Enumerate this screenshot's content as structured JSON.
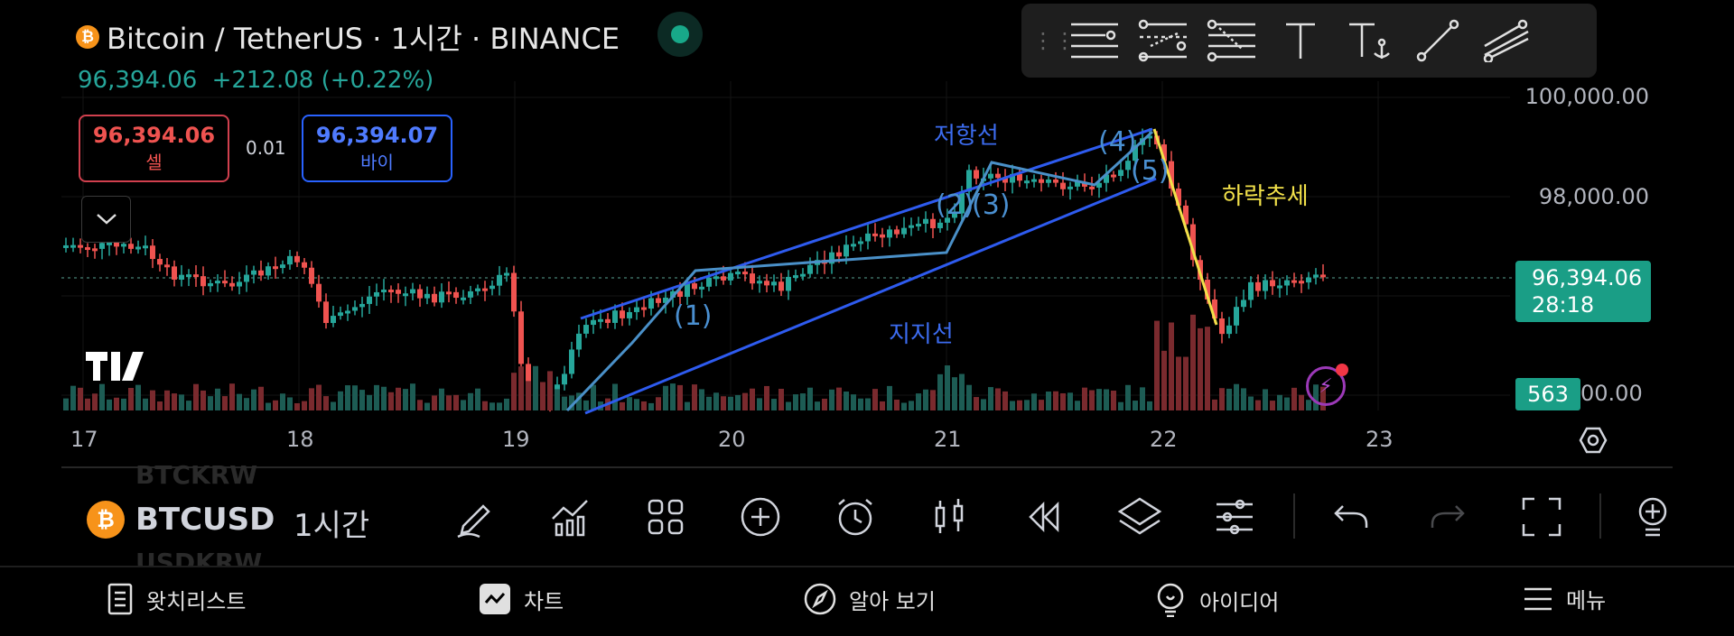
{
  "header": {
    "coin_glyph": "₿",
    "title": "Bitcoin / TetherUS · 1시간 · BINANCE",
    "last_price": "96,394.06",
    "change": "+212.08 (+0.22%)"
  },
  "order": {
    "sell_price": "96,394.06",
    "sell_label": "셀",
    "spread": "0.01",
    "buy_price": "96,394.07",
    "buy_label": "바이"
  },
  "price_axis": {
    "labels": [
      "100,000.00",
      "98,000.00"
    ],
    "current_price": "96,394.06",
    "countdown": "28:18",
    "volume_value": "563",
    "volume_axis_tail": "00.00"
  },
  "time_axis": {
    "labels": [
      "17",
      "18",
      "19",
      "20",
      "21",
      "22",
      "23"
    ]
  },
  "annotations": {
    "resistance": "저항선",
    "support": "지지선",
    "downtrend": "하락추세",
    "wave_1": "(1)",
    "wave_2": "(2)",
    "wave_3": "(3)",
    "wave_4": "(4)",
    "wave_5": "(5)"
  },
  "chart_data": {
    "type": "candlestick",
    "symbol": "BTCUSDT",
    "interval": "1시간",
    "y_labels": [
      100000,
      98000
    ],
    "current_price": 96394.06,
    "levels": {
      "y_top": 100000,
      "y_mid": 98000
    }
  },
  "toolbar": {
    "coin_glyph": "₿",
    "symbol": "BTCUSD",
    "ghost_top": "BTCKRW",
    "ghost_bottom": "USDKRW",
    "interval": "1시간"
  },
  "nav": {
    "watchlist": "왓치리스트",
    "chart": "차트",
    "explore": "알아 보기",
    "ideas": "아이디어",
    "menu": "메뉴"
  },
  "colors": {
    "up": "#26a69a",
    "down": "#ef5350",
    "line_blue": "#2e5bef",
    "line_light": "#4a90c8",
    "trend_yellow": "#f2e14a"
  },
  "icons": {
    "live": "live-dot-icon",
    "collapse": "chevron-down-icon",
    "settings": "settings-hex-icon",
    "flash": "lightning-icon"
  }
}
